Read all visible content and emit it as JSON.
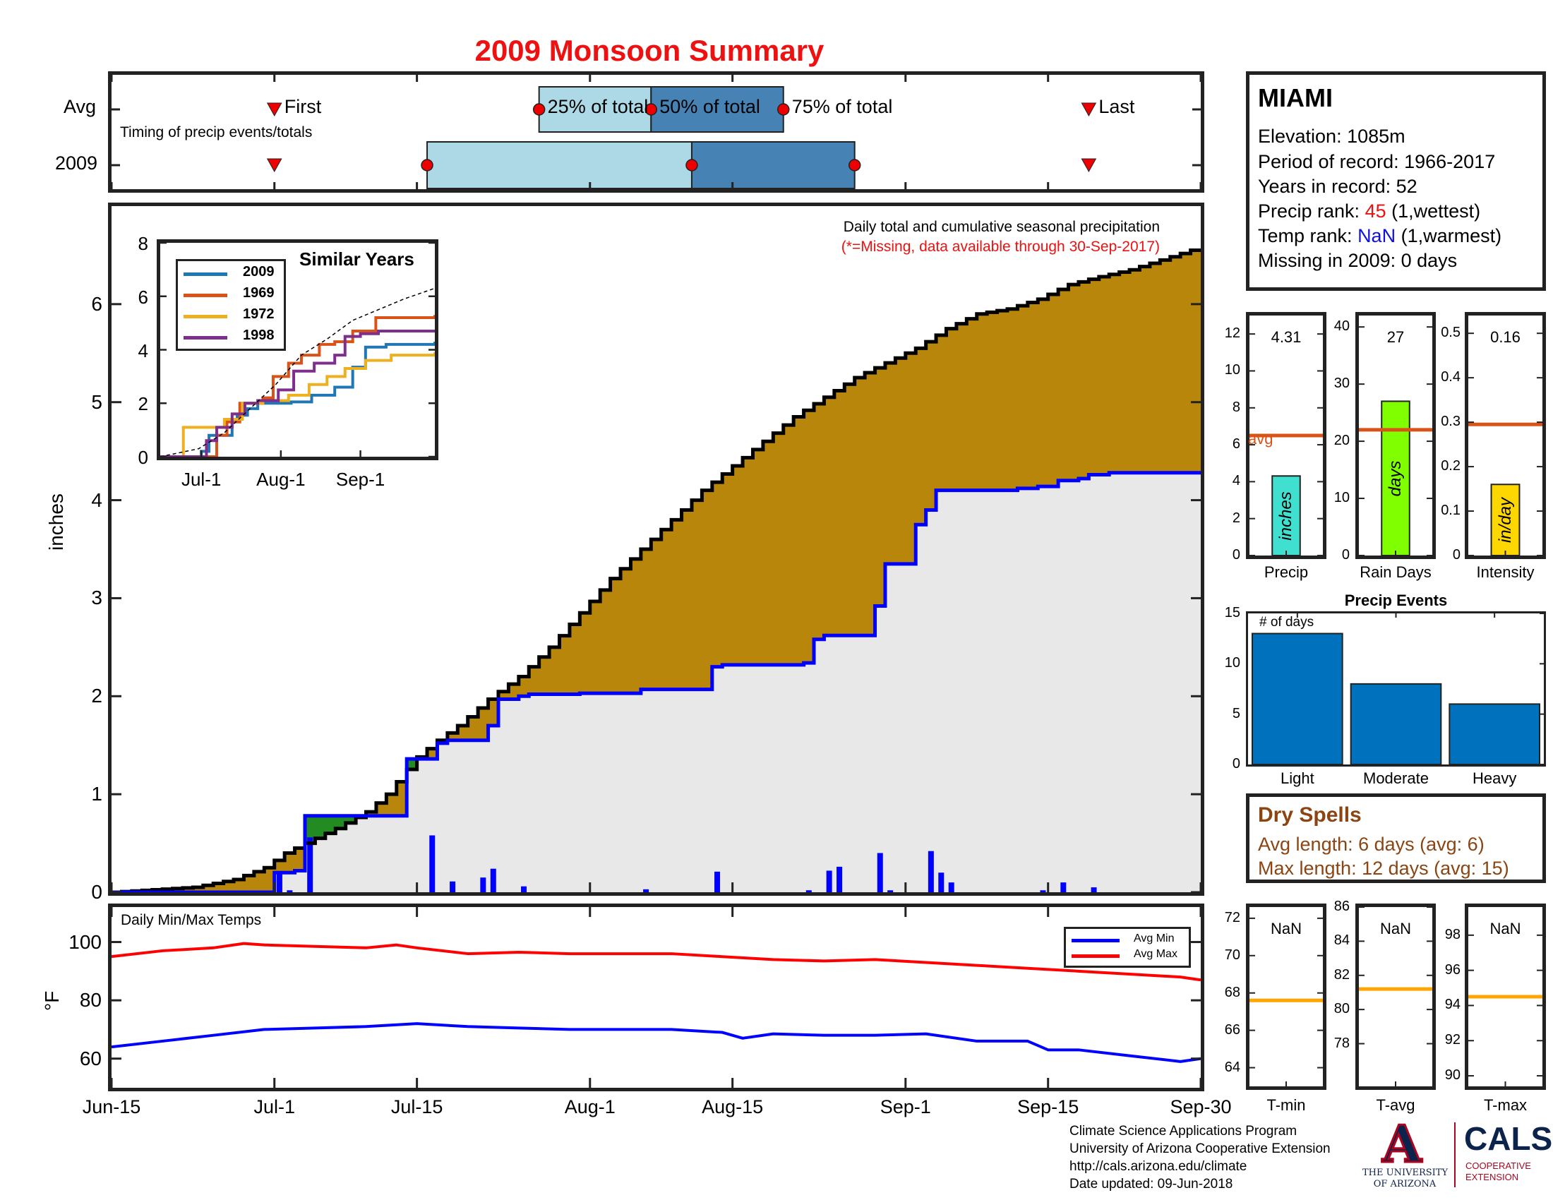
{
  "title": "2009 Monsoon Summary",
  "timing": {
    "avg_label": "Avg",
    "year_label": "2009",
    "caption": "Timing of precip events/totals",
    "first_label": "First",
    "last_label": "Last",
    "p25_label": "25% of total",
    "p50_label": "50% of total",
    "p75_label": "75% of total",
    "avg": {
      "first": "Jul-1",
      "p25": "Jul-27",
      "p50": "Aug-7",
      "p75": "Aug-20",
      "last": "Sep-19"
    },
    "year": {
      "first": "Jul-1",
      "p25": "Jul-16",
      "p50": "Aug-11",
      "p75": "Aug-27",
      "last": "Sep-19"
    },
    "colors": {
      "light": "#add8e6",
      "dark": "#4682b4",
      "marker": "#ee0000"
    }
  },
  "station": {
    "name": "MIAMI",
    "elevation": "Elevation: 1085m",
    "period": "Period of record: 1966-2017",
    "years": "Years in record: 52",
    "precip_rank_prefix": "Precip rank: ",
    "precip_rank_value": "45",
    "precip_rank_suffix": " (1,wettest)",
    "temp_rank_prefix": "Temp rank: ",
    "temp_rank_value": "NaN",
    "temp_rank_suffix": " (1,warmest)",
    "missing": "Missing in 2009: 0 days"
  },
  "main_chart": {
    "annotation": "Daily total and cumulative seasonal precipitation",
    "missing_note": "(*=Missing, data available through 30-Sep-2017)",
    "ylabel": "inches"
  },
  "temp_chart": {
    "title": "Daily Min/Max Temps",
    "ylabel": "°F",
    "legend_min": "Avg Min",
    "legend_max": "Avg Max"
  },
  "x_axis": {
    "ticks": [
      "Jun-15",
      "Jul-1",
      "Jul-15",
      "Aug-1",
      "Aug-15",
      "Sep-1",
      "Sep-15",
      "Sep-30"
    ],
    "tick_days": [
      0,
      16,
      30,
      47,
      61,
      78,
      92,
      107
    ]
  },
  "chart_data": [
    {
      "type": "area",
      "title": "2009 Monsoon Summary",
      "subtitle": "Daily total and cumulative seasonal precipitation",
      "xlabel": "",
      "ylabel": "inches",
      "x_start": "Jun-15",
      "x_end": "Sep-30",
      "xlim": [
        0,
        107
      ],
      "ylim": [
        0,
        7
      ],
      "yticks": [
        0,
        1,
        2,
        3,
        4,
        5,
        6
      ],
      "series": [
        {
          "name": "Avg cumulative",
          "color": "#000000",
          "x": [
            0,
            8,
            12,
            15,
            17,
            19,
            22,
            25,
            27,
            30,
            32,
            34,
            37,
            40,
            43,
            46,
            49,
            52,
            55,
            58,
            61,
            64,
            67,
            70,
            73,
            76,
            79,
            82,
            85,
            88,
            91,
            94,
            97,
            100,
            103,
            106,
            107
          ],
          "values": [
            0,
            0.05,
            0.13,
            0.25,
            0.4,
            0.5,
            0.65,
            0.82,
            1.0,
            1.38,
            1.55,
            1.7,
            1.97,
            2.2,
            2.5,
            2.85,
            3.2,
            3.5,
            3.8,
            4.1,
            4.35,
            4.6,
            4.85,
            5.05,
            5.25,
            5.4,
            5.55,
            5.75,
            5.9,
            5.95,
            6.05,
            6.2,
            6.28,
            6.35,
            6.45,
            6.55,
            6.68
          ]
        },
        {
          "name": "2009 cumulative",
          "color": "#0000ff",
          "x": [
            0,
            15,
            16,
            18,
            19,
            28,
            29,
            32,
            33,
            34,
            37,
            38,
            40,
            41,
            42,
            45,
            46,
            51,
            52,
            58,
            59,
            60,
            67,
            68,
            69,
            70,
            74,
            75,
            76,
            78,
            79,
            80,
            81,
            82,
            83,
            88,
            89,
            90,
            91,
            93,
            94,
            95,
            96,
            98,
            99,
            100,
            101,
            102,
            106,
            107
          ],
          "values": [
            0,
            0,
            0.2,
            0.22,
            0.78,
            0.78,
            1.36,
            1.52,
            1.55,
            1.55,
            1.7,
            1.97,
            2.0,
            2.02,
            2.02,
            2.02,
            2.03,
            2.03,
            2.07,
            2.07,
            2.3,
            2.32,
            2.32,
            2.34,
            2.58,
            2.62,
            2.62,
            2.92,
            3.35,
            3.35,
            3.75,
            3.9,
            4.1,
            4.1,
            4.1,
            4.1,
            4.12,
            4.12,
            4.14,
            4.2,
            4.2,
            4.22,
            4.26,
            4.28,
            4.28,
            4.28,
            4.28,
            4.28,
            4.28,
            4.28
          ]
        },
        {
          "name": "2009 daily",
          "type": "bar",
          "color": "#0000ff",
          "x": [
            16,
            17,
            19,
            31,
            33,
            36,
            37,
            40,
            52,
            59,
            68,
            70,
            71,
            75,
            76,
            80,
            81,
            82,
            91,
            93,
            96
          ],
          "values": [
            0.2,
            0.02,
            0.56,
            0.58,
            0.11,
            0.15,
            0.24,
            0.06,
            0.03,
            0.21,
            0.02,
            0.22,
            0.26,
            0.4,
            0.02,
            0.42,
            0.2,
            0.1,
            0.02,
            0.1,
            0.05
          ]
        }
      ]
    },
    {
      "type": "line",
      "title": "Similar Years",
      "xticks": [
        "Jul-1",
        "Aug-1",
        "Sep-1"
      ],
      "xtick_days": [
        16,
        47,
        78
      ],
      "xlim": [
        0,
        107
      ],
      "ylim": [
        0,
        8
      ],
      "yticks": [
        0,
        2,
        4,
        6,
        8
      ],
      "series": [
        {
          "name": "2009",
          "color": "#1f77b4",
          "x": [
            0,
            15,
            16,
            19,
            28,
            30,
            34,
            38,
            51,
            59,
            68,
            75,
            80,
            88,
            107
          ],
          "values": [
            0,
            0,
            0.2,
            0.8,
            1.4,
            1.55,
            1.8,
            2.0,
            2.05,
            2.3,
            2.6,
            3.35,
            4.1,
            4.2,
            4.3
          ]
        },
        {
          "name": "1969",
          "color": "#d95319",
          "x": [
            0,
            20,
            22,
            26,
            31,
            40,
            44,
            50,
            55,
            62,
            68,
            75,
            84,
            107
          ],
          "values": [
            0,
            0,
            0.8,
            1.3,
            2.0,
            2.2,
            3.0,
            3.5,
            3.8,
            4.2,
            4.3,
            4.7,
            5.2,
            5.3
          ]
        },
        {
          "name": "1972",
          "color": "#edb120",
          "x": [
            0,
            8,
            9,
            18,
            25,
            32,
            40,
            50,
            58,
            65,
            72,
            80,
            90,
            107
          ],
          "values": [
            0,
            0,
            1.1,
            1.1,
            1.4,
            2.0,
            2.1,
            2.3,
            2.7,
            3.0,
            3.3,
            3.6,
            3.8,
            3.9
          ]
        },
        {
          "name": "1998",
          "color": "#7e2f8e",
          "x": [
            0,
            15,
            18,
            22,
            28,
            33,
            38,
            46,
            52,
            60,
            68,
            72,
            78,
            85,
            107
          ],
          "values": [
            0,
            0,
            0.6,
            1.1,
            1.6,
            2.0,
            2.1,
            2.5,
            3.2,
            3.5,
            3.8,
            4.5,
            4.6,
            4.7,
            4.7
          ]
        },
        {
          "name": "Avg",
          "color": "#000000",
          "dashed": true,
          "x": [
            0,
            15,
            25,
            35,
            45,
            55,
            65,
            75,
            85,
            95,
            107
          ],
          "values": [
            0,
            0.3,
            0.9,
            1.8,
            2.7,
            3.8,
            4.4,
            5.1,
            5.5,
            5.9,
            6.3
          ]
        }
      ]
    },
    {
      "type": "bar",
      "title": "Precip",
      "value_label": "4.31",
      "bar_text": "inches",
      "values": [
        4.31
      ],
      "avg": 6.5,
      "avg_label": "avg",
      "ylim": [
        0,
        13
      ],
      "yticks": [
        0,
        2,
        4,
        6,
        8,
        10,
        12
      ],
      "color": "#40e0d0"
    },
    {
      "type": "bar",
      "title": "Rain Days",
      "value_label": "27",
      "bar_text": "days",
      "values": [
        27
      ],
      "avg": 22,
      "ylim": [
        0,
        42
      ],
      "yticks": [
        0,
        10,
        20,
        30,
        40
      ],
      "color": "#7fff00"
    },
    {
      "type": "bar",
      "title": "Intensity",
      "value_label": "0.16",
      "bar_text": "in/day",
      "values": [
        0.16
      ],
      "avg": 0.295,
      "ylim": [
        0,
        0.54
      ],
      "yticks": [
        0,
        0.1,
        0.2,
        0.3,
        0.4,
        0.5
      ],
      "color": "#ffd700"
    },
    {
      "type": "bar",
      "title": "Precip Events",
      "ylabel": "# of days",
      "categories": [
        "Light",
        "Moderate",
        "Heavy"
      ],
      "values": [
        13,
        8,
        6
      ],
      "ylim": [
        0,
        15
      ],
      "yticks": [
        0,
        5,
        10,
        15
      ],
      "color": "#0072bd"
    },
    {
      "type": "line",
      "title": "Daily Min/Max Temps",
      "ylabel": "°F",
      "xlim": [
        0,
        107
      ],
      "ylim": [
        50,
        112
      ],
      "yticks": [
        60,
        80,
        100
      ],
      "series": [
        {
          "name": "Avg Min",
          "color": "#0000ff",
          "x": [
            0,
            5,
            10,
            15,
            20,
            25,
            30,
            35,
            40,
            45,
            50,
            55,
            60,
            62,
            65,
            70,
            75,
            80,
            85,
            90,
            92,
            95,
            100,
            105,
            107
          ],
          "values": [
            64,
            66,
            68,
            70,
            70.5,
            71,
            72,
            71,
            70.5,
            70,
            70,
            70,
            69,
            67,
            68.5,
            68,
            68,
            68.5,
            66,
            66,
            63,
            63,
            61,
            59,
            60
          ]
        },
        {
          "name": "Avg Max",
          "color": "#ff0000",
          "x": [
            0,
            5,
            10,
            13,
            15,
            20,
            25,
            28,
            30,
            35,
            40,
            45,
            50,
            55,
            60,
            65,
            70,
            75,
            80,
            85,
            90,
            95,
            100,
            105,
            107
          ],
          "values": [
            95,
            97,
            98,
            99.5,
            99,
            98.5,
            98,
            99,
            98,
            96,
            96.5,
            96,
            96,
            96,
            95,
            94,
            93.5,
            94,
            93,
            92,
            91,
            90,
            89,
            88,
            87
          ]
        }
      ]
    },
    {
      "type": "bar",
      "title": "T-min",
      "value_label": "NaN",
      "values": [],
      "avg": 67.6,
      "ylim": [
        63,
        72.6
      ],
      "yticks": [
        64,
        66,
        68,
        70,
        72
      ]
    },
    {
      "type": "bar",
      "title": "T-avg",
      "value_label": "NaN",
      "values": [],
      "avg": 81.2,
      "ylim": [
        75.5,
        86
      ],
      "yticks": [
        78,
        80,
        82,
        84,
        86
      ]
    },
    {
      "type": "bar",
      "title": "T-max",
      "value_label": "NaN",
      "values": [],
      "avg": 94.5,
      "ylim": [
        89.4,
        99.6
      ],
      "yticks": [
        90,
        92,
        94,
        96,
        98
      ]
    }
  ],
  "dry_spells": {
    "title": "Dry Spells",
    "avg_length": "Avg length: 6 days (avg: 6)",
    "max_length": "Max length: 12 days (avg: 15)"
  },
  "credits": {
    "line1": "Climate Science Applications Program",
    "line2": "University of Arizona Cooperative Extension",
    "line3": "http://cals.arizona.edu/climate",
    "line4": " Date updated: 09-Jun-2018"
  },
  "logos": {
    "ua_letter": "A",
    "ua_line1": "THE UNIVERSITY",
    "ua_line2": "OF ARIZONA",
    "cals_name": "CALS",
    "cals_line1": "COOPERATIVE",
    "cals_line2": "EXTENSION"
  },
  "colors": {
    "above_avg_fill": "#b8860b",
    "below_avg_fill": "#228b22",
    "base_fill": "#e8e8e8",
    "title_red": "#ee1111",
    "station_red": "#ee1111",
    "station_blue": "#1111dd",
    "dry_brown": "#8b4513",
    "avg_line": "#d95319",
    "temp_avg_line": "#ffa500"
  }
}
